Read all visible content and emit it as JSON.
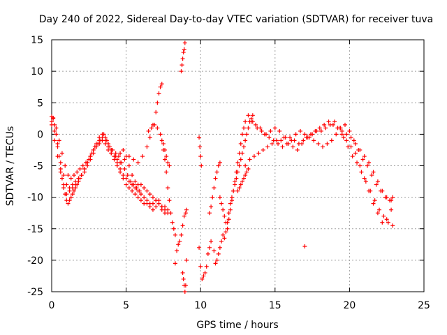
{
  "chart_data": {
    "type": "scatter",
    "title": "Day 240 of 2022, Sidereal Day-to-day VTEC variation (SDTVAR) for receiver tuva",
    "xlabel": "GPS time / hours",
    "ylabel": "SDTVAR / TECUs",
    "xlim": [
      0,
      25
    ],
    "ylim": [
      -25,
      15
    ],
    "xticks": [
      0,
      5,
      10,
      15,
      20,
      25
    ],
    "yticks": [
      -25,
      -20,
      -15,
      -10,
      -5,
      0,
      5,
      10,
      15
    ],
    "grid": true,
    "marker": "+",
    "color": "#ff0000",
    "series": [
      {
        "name": "trace-1",
        "x": [
          0.0,
          0.1,
          0.2,
          0.3,
          0.4,
          0.5,
          0.6,
          0.7,
          0.8,
          0.9,
          1.0,
          1.1,
          1.2,
          1.3,
          1.4,
          1.5,
          1.6,
          1.7,
          1.8,
          1.9,
          2.0,
          2.2,
          2.4,
          2.6,
          2.8,
          3.0,
          3.2,
          3.4,
          3.6,
          3.8,
          4.0,
          4.2,
          4.4,
          4.6,
          4.8,
          5.0,
          5.2,
          5.4,
          5.6,
          5.8,
          6.0,
          6.2,
          6.4,
          6.6,
          6.8,
          7.0,
          7.2,
          7.4,
          7.6,
          7.8
        ],
        "y": [
          2.8,
          2.5,
          1.5,
          0.0,
          -1.5,
          -3.5,
          -5.5,
          -7.0,
          -8.5,
          -9.5,
          -10.5,
          -11.0,
          -10.5,
          -10.0,
          -9.5,
          -9.0,
          -8.5,
          -8.0,
          -7.5,
          -7.0,
          -6.5,
          -5.5,
          -4.5,
          -3.5,
          -2.5,
          -1.5,
          -0.5,
          0.0,
          -0.5,
          -1.5,
          -2.5,
          -3.5,
          -4.5,
          -5.5,
          -6.5,
          -7.0,
          -7.5,
          -8.0,
          -8.5,
          -9.0,
          -9.5,
          -10.0,
          -10.5,
          -11.0,
          -11.0,
          -10.5,
          -10.5,
          -11.5,
          -12.0,
          -12.5
        ]
      },
      {
        "name": "trace-2",
        "x": [
          0.0,
          0.2,
          0.4,
          0.6,
          0.8,
          1.0,
          1.2,
          1.4,
          1.6,
          1.8,
          2.0,
          2.2,
          2.4,
          2.6,
          2.8,
          3.0,
          3.2,
          3.4,
          3.6,
          3.8,
          4.0,
          4.2,
          4.4,
          4.6,
          4.8,
          5.0,
          5.2,
          5.4,
          5.6,
          5.8,
          6.0,
          6.2,
          6.4,
          6.6,
          6.8,
          7.0,
          7.2,
          7.4,
          7.6
        ],
        "y": [
          2.0,
          0.5,
          -2.0,
          -4.5,
          -6.5,
          -8.0,
          -8.5,
          -8.0,
          -7.5,
          -7.0,
          -6.5,
          -6.0,
          -5.0,
          -4.0,
          -3.0,
          -2.0,
          -1.0,
          -0.5,
          -1.0,
          -2.0,
          -3.0,
          -4.0,
          -5.0,
          -6.0,
          -7.0,
          -8.0,
          -8.5,
          -9.0,
          -9.5,
          -10.0,
          -10.5,
          -11.0,
          -11.0,
          -11.5,
          -12.0,
          -11.5,
          -11.0,
          -12.0,
          -12.5
        ]
      },
      {
        "name": "trace-3",
        "x": [
          0.0,
          0.2,
          0.4,
          0.6,
          0.8,
          1.0,
          1.2,
          1.4,
          1.6,
          1.8,
          2.0,
          2.2,
          2.4,
          2.6,
          2.8,
          3.0,
          3.2,
          3.4,
          3.6,
          3.8,
          4.0,
          4.2,
          4.4,
          4.6,
          4.8,
          5.0,
          5.2,
          5.4,
          5.6,
          5.8,
          6.0,
          6.2,
          6.4,
          6.6,
          6.8,
          7.0,
          7.2,
          7.4,
          7.6,
          7.8
        ],
        "y": [
          1.5,
          -1.0,
          -3.5,
          -6.0,
          -8.0,
          -9.5,
          -9.0,
          -8.5,
          -8.0,
          -7.5,
          -6.5,
          -5.5,
          -4.5,
          -3.5,
          -2.5,
          -2.0,
          -1.5,
          -1.0,
          -1.5,
          -2.5,
          -3.0,
          -3.5,
          -4.0,
          -3.0,
          -2.5,
          -3.5,
          -5.0,
          -6.5,
          -7.5,
          -8.0,
          -8.0,
          -8.5,
          -9.0,
          -9.5,
          -10.0,
          -10.5,
          -11.0,
          -11.5,
          -11.5,
          -12.0
        ]
      },
      {
        "name": "trace-4",
        "x": [
          0.1,
          0.3,
          0.5,
          0.7,
          0.9,
          1.1,
          1.3,
          1.5,
          1.7,
          1.9,
          2.1,
          2.3,
          2.5,
          2.7,
          2.9,
          3.1,
          3.3,
          3.5,
          3.7,
          3.9,
          4.1,
          4.3,
          4.5,
          4.7,
          4.9,
          5.1,
          5.3,
          5.5,
          5.7,
          5.9
        ],
        "y": [
          2.6,
          1.0,
          -1.0,
          -3.0,
          -5.0,
          -6.5,
          -7.0,
          -6.5,
          -6.0,
          -5.5,
          -5.0,
          -4.5,
          -4.0,
          -3.0,
          -2.0,
          -1.5,
          -1.0,
          0.0,
          -1.0,
          -2.0,
          -2.5,
          -3.0,
          -3.5,
          -4.5,
          -5.5,
          -6.5,
          -7.5,
          -8.0,
          -8.5,
          -9.0
        ]
      },
      {
        "name": "trace-5",
        "x": [
          4.0,
          4.3,
          4.6,
          4.9,
          5.2,
          5.5,
          5.8,
          6.1,
          6.4,
          6.6,
          6.8,
          7.0,
          7.1,
          7.2,
          7.3,
          7.4
        ],
        "y": [
          -2.5,
          -3.5,
          -4.5,
          -4.0,
          -3.5,
          -4.0,
          -4.5,
          -3.5,
          -2.0,
          -0.5,
          1.5,
          3.5,
          5.0,
          6.5,
          7.5,
          8.0
        ]
      },
      {
        "name": "trace-6",
        "x": [
          6.5,
          6.7,
          6.9,
          7.1,
          7.3,
          7.4,
          7.5,
          7.6,
          7.7,
          7.8,
          7.9
        ],
        "y": [
          0.5,
          1.0,
          1.5,
          1.0,
          0.0,
          -1.0,
          -1.5,
          -2.5,
          -3.5,
          -4.5,
          -5.0
        ]
      },
      {
        "name": "trace-7",
        "x": [
          7.5,
          7.6,
          7.7,
          7.8,
          7.9,
          8.0,
          8.1,
          8.2,
          8.3
        ],
        "y": [
          -2.5,
          -4.0,
          -6.0,
          -8.5,
          -10.5,
          -12.5,
          -14.0,
          -15.0,
          -16.0
        ]
      },
      {
        "name": "trace-8",
        "x": [
          8.3,
          8.4,
          8.5,
          8.6,
          8.7,
          8.8,
          8.9,
          9.0,
          9.05
        ],
        "y": [
          -20.5,
          -18.5,
          -17.5,
          -17.0,
          -16.0,
          -14.5,
          -13.0,
          -12.5,
          -12.0
        ]
      },
      {
        "name": "trace-9",
        "x": [
          8.8,
          8.85,
          8.9,
          8.95,
          9.0,
          9.05
        ],
        "y": [
          -22.0,
          -23.0,
          -24.0,
          -25.0,
          -24.0,
          -20.0
        ]
      },
      {
        "name": "trace-10",
        "x": [
          8.7,
          8.75,
          8.8,
          8.85,
          8.9,
          8.95
        ],
        "y": [
          10.0,
          11.0,
          12.0,
          13.0,
          13.5,
          14.5
        ]
      },
      {
        "name": "trace-11",
        "x": [
          9.9,
          10.0,
          10.1,
          10.2,
          10.3,
          10.4,
          10.5,
          10.6,
          10.7
        ],
        "y": [
          -18.0,
          -21.0,
          -23.0,
          -22.5,
          -22.0,
          -21.0,
          -19.0,
          -18.0,
          -17.0
        ]
      },
      {
        "name": "trace-12",
        "x": [
          9.9,
          9.95,
          10.0,
          10.05
        ],
        "y": [
          -0.5,
          -2.0,
          -3.5,
          -5.0
        ]
      },
      {
        "name": "trace-13",
        "x": [
          10.6,
          10.7,
          10.8,
          10.9,
          11.0,
          11.1,
          11.2,
          11.3
        ],
        "y": [
          -12.5,
          -11.5,
          -10.0,
          -8.5,
          -7.0,
          -6.0,
          -5.0,
          -4.5
        ]
      },
      {
        "name": "trace-14",
        "x": [
          10.9,
          11.0,
          11.1,
          11.2,
          11.3,
          11.4,
          11.5,
          11.6,
          11.7,
          11.8,
          11.9,
          12.0,
          12.1,
          12.2,
          12.3,
          12.4,
          12.5,
          12.6,
          12.7,
          12.8,
          12.9,
          13.0,
          13.1,
          13.2,
          13.3,
          13.4,
          13.5
        ],
        "y": [
          -18.5,
          -20.5,
          -20.0,
          -19.0,
          -18.0,
          -17.0,
          -16.0,
          -16.5,
          -15.5,
          -14.0,
          -12.5,
          -11.0,
          -10.0,
          -9.0,
          -8.0,
          -7.0,
          -6.0,
          -5.0,
          -4.0,
          -3.0,
          -2.0,
          -1.0,
          0.0,
          1.0,
          2.0,
          2.5,
          3.0
        ]
      },
      {
        "name": "trace-15",
        "x": [
          11.3,
          11.4,
          11.5,
          11.6,
          11.7,
          11.8,
          11.9,
          12.0,
          12.1,
          12.2,
          12.3,
          12.4,
          12.5,
          12.6,
          12.7,
          12.8,
          12.9,
          13.0
        ],
        "y": [
          -10.0,
          -11.0,
          -12.0,
          -13.0,
          -14.0,
          -15.0,
          -13.5,
          -12.0,
          -10.5,
          -9.0,
          -7.5,
          -6.0,
          -4.5,
          -3.0,
          -1.5,
          0.0,
          1.0,
          2.0
        ]
      },
      {
        "name": "trace-16",
        "x": [
          12.5,
          12.6,
          12.7,
          12.8,
          12.9,
          13.0,
          13.1,
          13.2
        ],
        "y": [
          -9.0,
          -8.5,
          -8.0,
          -7.5,
          -7.0,
          -6.5,
          -6.0,
          -5.5
        ]
      },
      {
        "name": "trace-17",
        "x": [
          13.0,
          13.3,
          13.6,
          13.9,
          14.2,
          14.5,
          14.8,
          15.1,
          15.4,
          15.7,
          16.0,
          16.3,
          16.6,
          16.9,
          17.2,
          17.5,
          17.8,
          18.1,
          18.4,
          18.7,
          19.0,
          19.3,
          19.6,
          19.9,
          20.2,
          20.5,
          20.8,
          21.1,
          21.4,
          21.7,
          22.0,
          22.3,
          22.6,
          22.9
        ],
        "y": [
          -5.0,
          -4.0,
          -3.5,
          -3.0,
          -2.5,
          -2.0,
          -1.5,
          -1.0,
          -1.0,
          -0.5,
          -0.5,
          -1.0,
          -1.5,
          -1.0,
          -0.5,
          0.0,
          0.5,
          0.5,
          1.0,
          1.5,
          2.0,
          1.0,
          -0.5,
          -2.0,
          -3.5,
          -4.5,
          -6.0,
          -7.5,
          -9.0,
          -10.5,
          -12.0,
          -13.0,
          -14.0,
          -14.5
        ]
      },
      {
        "name": "trace-18",
        "x": [
          13.2,
          13.5,
          13.8,
          14.1,
          14.4,
          14.7,
          15.0,
          15.3,
          15.6,
          15.9,
          16.2,
          16.5,
          16.8,
          17.1,
          17.4,
          17.7,
          18.0,
          18.3,
          18.6,
          18.9,
          19.2,
          19.5,
          19.8,
          20.1,
          20.4,
          20.7,
          21.0,
          21.3,
          21.6,
          21.9,
          22.2,
          22.5,
          22.8
        ],
        "y": [
          3.0,
          2.0,
          1.0,
          0.5,
          0.0,
          0.5,
          1.0,
          0.5,
          -0.5,
          -1.5,
          -2.0,
          -2.5,
          -1.5,
          -0.5,
          0.0,
          0.5,
          1.0,
          1.5,
          2.0,
          1.5,
          1.0,
          0.0,
          -1.0,
          -2.0,
          -3.0,
          -5.0,
          -7.0,
          -9.0,
          -11.0,
          -12.5,
          -14.0,
          -13.5,
          -12.0
        ]
      },
      {
        "name": "trace-19",
        "x": [
          13.4,
          13.7,
          14.0,
          14.3,
          14.6,
          14.9,
          15.2,
          15.5,
          15.8,
          16.1,
          16.4,
          16.7,
          17.0,
          17.3,
          17.6,
          17.9,
          18.2,
          18.5,
          18.8,
          19.1,
          19.4,
          19.7,
          20.0,
          20.3,
          20.6,
          20.9,
          21.2,
          21.5,
          21.8,
          22.1,
          22.4,
          22.7,
          22.9
        ],
        "y": [
          2.0,
          1.5,
          1.0,
          0.0,
          -0.5,
          -1.0,
          -1.5,
          -2.0,
          -1.5,
          -1.0,
          0.0,
          0.5,
          0.0,
          -0.5,
          -1.0,
          -1.5,
          -2.0,
          -1.5,
          -1.0,
          0.0,
          1.0,
          1.5,
          0.5,
          -1.0,
          -2.5,
          -4.0,
          -5.0,
          -6.5,
          -8.0,
          -9.0,
          -10.0,
          -10.5,
          -10.0
        ]
      },
      {
        "name": "trace-20",
        "x": [
          19.5,
          19.8,
          20.1,
          20.4,
          20.7,
          21.0,
          21.3,
          21.6,
          21.9,
          22.2,
          22.5,
          22.8
        ],
        "y": [
          0.5,
          0.0,
          -0.5,
          -1.5,
          -2.5,
          -3.5,
          -4.5,
          -6.0,
          -7.5,
          -9.0,
          -10.0,
          -10.5
        ]
      },
      {
        "name": "outlier",
        "x": [
          17.0
        ],
        "y": [
          -17.8
        ]
      }
    ]
  }
}
